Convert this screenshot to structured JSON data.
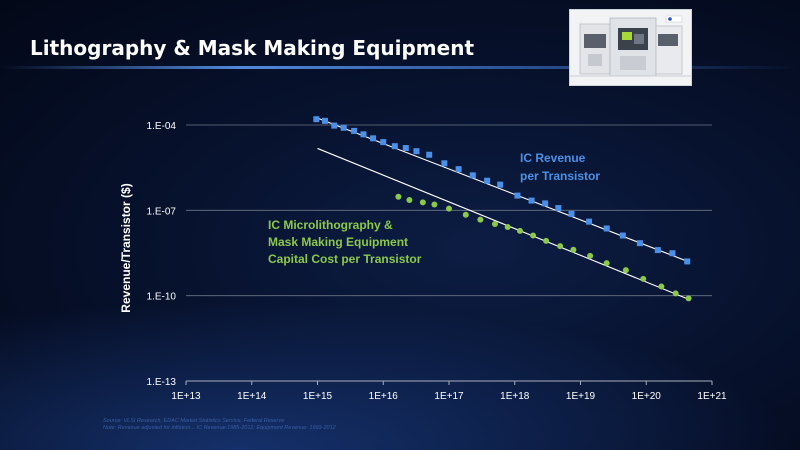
{
  "slide": {
    "title": "Lithography & Mask Making Equipment",
    "photo_icon": "lithography-machine-image",
    "footnote_line1": "Source: VLSI Research, EDAC Market Statistics Service, Federal Reserve",
    "footnote_line2": "Note: Revenue adjusted for inflation... IC Revenue:1985-2012; Equipment Revenue: 1993-2012"
  },
  "colors": {
    "revenue": "#4a90e8",
    "equipment": "#8cc84a",
    "trend": "#ffffff",
    "grid": "#6b7486",
    "text": "#ffffff"
  },
  "chart_data": {
    "type": "scatter",
    "xscale": "log",
    "yscale": "log",
    "xlim": [
      10000000000000.0,
      1e+21
    ],
    "ylim": [
      1e-13,
      0.001
    ],
    "xlabel": "",
    "ylabel": "Revenue/Transistor ($)",
    "x_ticks": [
      "1E+13",
      "1E+14",
      "1E+15",
      "1E+16",
      "1E+17",
      "1E+18",
      "1E+19",
      "1E+20",
      "1E+21"
    ],
    "y_ticks": [
      "1.E-04",
      "1.E-07",
      "1.E-10",
      "1.E-13"
    ],
    "grid": "horizontal",
    "series": [
      {
        "name": "IC Revenue per Transistor",
        "label_line1": "IC Revenue",
        "label_line2": "per Transistor",
        "marker": "square",
        "x": [
          960000000000000.0,
          1300000000000000.0,
          1800000000000000.0,
          2500000000000000.0,
          3600000000000000.0,
          5000000000000000.0,
          7000000000000000.0,
          1e+16,
          1.5e+16,
          2.2e+16,
          3.2e+16,
          5e+16,
          8.5e+16,
          1.4e+17,
          2.3e+17,
          3.8e+17,
          6e+17,
          1.1e+18,
          1.8e+18,
          2.9e+18,
          4.6e+18,
          7.3e+18,
          1.35e+19,
          2.5e+19,
          4.4e+19,
          8e+19,
          1.5e+20,
          2.5e+20,
          4.2e+20
        ],
        "y": [
          0.00016,
          0.00014,
          9.5e-05,
          8e-05,
          6.2e-05,
          4.7e-05,
          3.4e-05,
          2.5e-05,
          1.8e-05,
          1.55e-05,
          1.2e-05,
          9e-06,
          4.5e-06,
          2.8e-06,
          1.7e-06,
          1.1e-06,
          8e-07,
          3.3e-07,
          2.2e-07,
          1.75e-07,
          1.2e-07,
          7.5e-08,
          4e-08,
          2.3e-08,
          1.3e-08,
          7e-09,
          4e-09,
          3.1e-09,
          1.6e-09
        ]
      },
      {
        "name": "IC Microlithography & Mask Making Equipment Capital Cost per Transistor",
        "label_line1": "IC Microlithography &",
        "label_line2": "Mask Making Equipment",
        "label_line3": "Capital Cost per Transistor",
        "marker": "circle",
        "x": [
          1.7e+16,
          2.5e+16,
          4e+16,
          6e+16,
          1e+17,
          1.8e+17,
          3e+17,
          5e+17,
          7.8e+17,
          1.2e+18,
          1.9e+18,
          3e+18,
          4.9e+18,
          7.8e+18,
          1.4e+19,
          2.5e+19,
          4.9e+19,
          9e+19,
          1.7e+20,
          2.8e+20,
          4.4e+20
        ],
        "y": [
          3e-07,
          2.3e-07,
          1.9e-07,
          1.6e-07,
          1.15e-07,
          7e-08,
          4.7e-08,
          3.3e-08,
          2.6e-08,
          1.9e-08,
          1.3e-08,
          8.4e-09,
          5.5e-09,
          4.1e-09,
          2.5e-09,
          1.4e-09,
          7.9e-10,
          3.9e-10,
          2.1e-10,
          1.2e-10,
          8e-11
        ]
      }
    ],
    "trendlines": [
      {
        "series": "IC Revenue per Transistor",
        "x": [
          1000000000000000.0,
          4.6e+20
        ],
        "y": [
          0.000175,
          1.5e-09
        ]
      },
      {
        "series": "IC Microlithography & Mask Making Equipment Capital Cost per Transistor",
        "x": [
          1000000000000000.0,
          4.4e+20
        ],
        "y": [
          1.5e-05,
          7.5e-11
        ]
      }
    ]
  }
}
